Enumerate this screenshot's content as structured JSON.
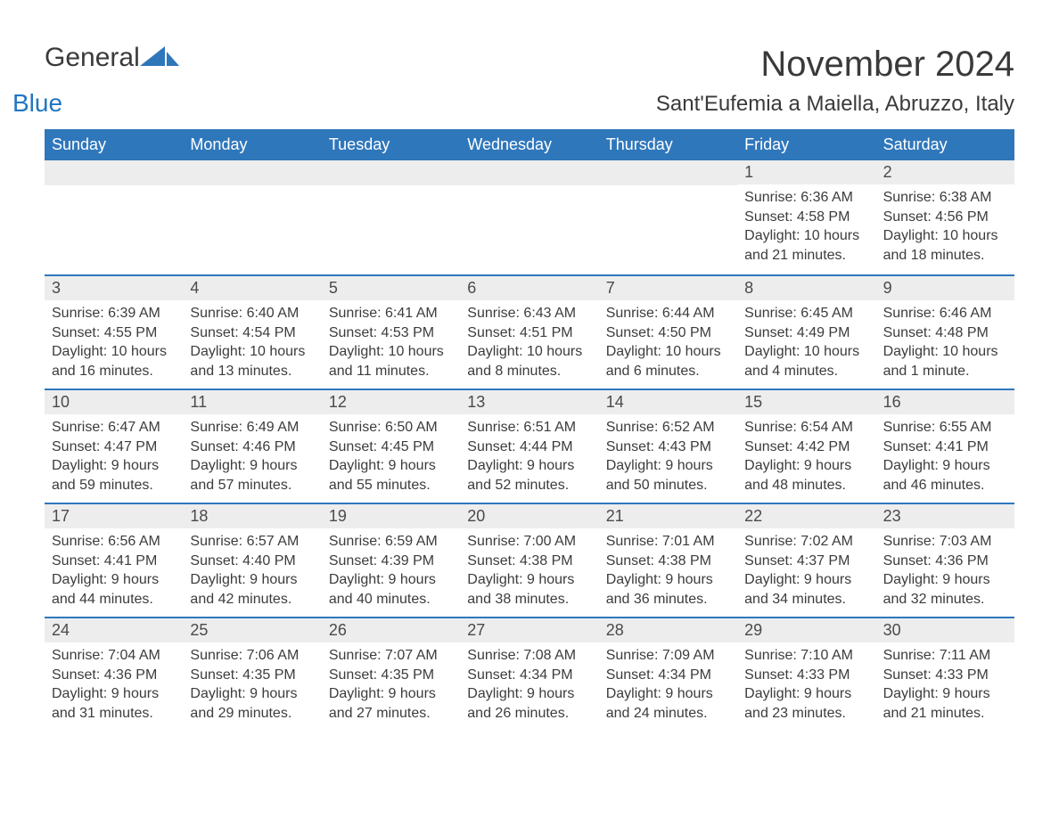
{
  "brand": {
    "part1": "General",
    "part2": "Blue"
  },
  "title": "November 2024",
  "location": "Sant'Eufemia a Maiella, Abruzzo, Italy",
  "colors": {
    "header_bg": "#2f77bb",
    "header_text": "#ffffff",
    "band_bg": "#ededed",
    "accent": "#2176c0",
    "body_text": "#3c3c3c"
  },
  "typography": {
    "title_fontsize": 40,
    "location_fontsize": 24,
    "day_header_fontsize": 18,
    "cell_fontsize": 16
  },
  "day_names": [
    "Sunday",
    "Monday",
    "Tuesday",
    "Wednesday",
    "Thursday",
    "Friday",
    "Saturday"
  ],
  "weeks": [
    [
      null,
      null,
      null,
      null,
      null,
      {
        "date": "1",
        "sunrise": "Sunrise: 6:36 AM",
        "sunset": "Sunset: 4:58 PM",
        "daylight": "Daylight: 10 hours and 21 minutes."
      },
      {
        "date": "2",
        "sunrise": "Sunrise: 6:38 AM",
        "sunset": "Sunset: 4:56 PM",
        "daylight": "Daylight: 10 hours and 18 minutes."
      }
    ],
    [
      {
        "date": "3",
        "sunrise": "Sunrise: 6:39 AM",
        "sunset": "Sunset: 4:55 PM",
        "daylight": "Daylight: 10 hours and 16 minutes."
      },
      {
        "date": "4",
        "sunrise": "Sunrise: 6:40 AM",
        "sunset": "Sunset: 4:54 PM",
        "daylight": "Daylight: 10 hours and 13 minutes."
      },
      {
        "date": "5",
        "sunrise": "Sunrise: 6:41 AM",
        "sunset": "Sunset: 4:53 PM",
        "daylight": "Daylight: 10 hours and 11 minutes."
      },
      {
        "date": "6",
        "sunrise": "Sunrise: 6:43 AM",
        "sunset": "Sunset: 4:51 PM",
        "daylight": "Daylight: 10 hours and 8 minutes."
      },
      {
        "date": "7",
        "sunrise": "Sunrise: 6:44 AM",
        "sunset": "Sunset: 4:50 PM",
        "daylight": "Daylight: 10 hours and 6 minutes."
      },
      {
        "date": "8",
        "sunrise": "Sunrise: 6:45 AM",
        "sunset": "Sunset: 4:49 PM",
        "daylight": "Daylight: 10 hours and 4 minutes."
      },
      {
        "date": "9",
        "sunrise": "Sunrise: 6:46 AM",
        "sunset": "Sunset: 4:48 PM",
        "daylight": "Daylight: 10 hours and 1 minute."
      }
    ],
    [
      {
        "date": "10",
        "sunrise": "Sunrise: 6:47 AM",
        "sunset": "Sunset: 4:47 PM",
        "daylight": "Daylight: 9 hours and 59 minutes."
      },
      {
        "date": "11",
        "sunrise": "Sunrise: 6:49 AM",
        "sunset": "Sunset: 4:46 PM",
        "daylight": "Daylight: 9 hours and 57 minutes."
      },
      {
        "date": "12",
        "sunrise": "Sunrise: 6:50 AM",
        "sunset": "Sunset: 4:45 PM",
        "daylight": "Daylight: 9 hours and 55 minutes."
      },
      {
        "date": "13",
        "sunrise": "Sunrise: 6:51 AM",
        "sunset": "Sunset: 4:44 PM",
        "daylight": "Daylight: 9 hours and 52 minutes."
      },
      {
        "date": "14",
        "sunrise": "Sunrise: 6:52 AM",
        "sunset": "Sunset: 4:43 PM",
        "daylight": "Daylight: 9 hours and 50 minutes."
      },
      {
        "date": "15",
        "sunrise": "Sunrise: 6:54 AM",
        "sunset": "Sunset: 4:42 PM",
        "daylight": "Daylight: 9 hours and 48 minutes."
      },
      {
        "date": "16",
        "sunrise": "Sunrise: 6:55 AM",
        "sunset": "Sunset: 4:41 PM",
        "daylight": "Daylight: 9 hours and 46 minutes."
      }
    ],
    [
      {
        "date": "17",
        "sunrise": "Sunrise: 6:56 AM",
        "sunset": "Sunset: 4:41 PM",
        "daylight": "Daylight: 9 hours and 44 minutes."
      },
      {
        "date": "18",
        "sunrise": "Sunrise: 6:57 AM",
        "sunset": "Sunset: 4:40 PM",
        "daylight": "Daylight: 9 hours and 42 minutes."
      },
      {
        "date": "19",
        "sunrise": "Sunrise: 6:59 AM",
        "sunset": "Sunset: 4:39 PM",
        "daylight": "Daylight: 9 hours and 40 minutes."
      },
      {
        "date": "20",
        "sunrise": "Sunrise: 7:00 AM",
        "sunset": "Sunset: 4:38 PM",
        "daylight": "Daylight: 9 hours and 38 minutes."
      },
      {
        "date": "21",
        "sunrise": "Sunrise: 7:01 AM",
        "sunset": "Sunset: 4:38 PM",
        "daylight": "Daylight: 9 hours and 36 minutes."
      },
      {
        "date": "22",
        "sunrise": "Sunrise: 7:02 AM",
        "sunset": "Sunset: 4:37 PM",
        "daylight": "Daylight: 9 hours and 34 minutes."
      },
      {
        "date": "23",
        "sunrise": "Sunrise: 7:03 AM",
        "sunset": "Sunset: 4:36 PM",
        "daylight": "Daylight: 9 hours and 32 minutes."
      }
    ],
    [
      {
        "date": "24",
        "sunrise": "Sunrise: 7:04 AM",
        "sunset": "Sunset: 4:36 PM",
        "daylight": "Daylight: 9 hours and 31 minutes."
      },
      {
        "date": "25",
        "sunrise": "Sunrise: 7:06 AM",
        "sunset": "Sunset: 4:35 PM",
        "daylight": "Daylight: 9 hours and 29 minutes."
      },
      {
        "date": "26",
        "sunrise": "Sunrise: 7:07 AM",
        "sunset": "Sunset: 4:35 PM",
        "daylight": "Daylight: 9 hours and 27 minutes."
      },
      {
        "date": "27",
        "sunrise": "Sunrise: 7:08 AM",
        "sunset": "Sunset: 4:34 PM",
        "daylight": "Daylight: 9 hours and 26 minutes."
      },
      {
        "date": "28",
        "sunrise": "Sunrise: 7:09 AM",
        "sunset": "Sunset: 4:34 PM",
        "daylight": "Daylight: 9 hours and 24 minutes."
      },
      {
        "date": "29",
        "sunrise": "Sunrise: 7:10 AM",
        "sunset": "Sunset: 4:33 PM",
        "daylight": "Daylight: 9 hours and 23 minutes."
      },
      {
        "date": "30",
        "sunrise": "Sunrise: 7:11 AM",
        "sunset": "Sunset: 4:33 PM",
        "daylight": "Daylight: 9 hours and 21 minutes."
      }
    ]
  ]
}
